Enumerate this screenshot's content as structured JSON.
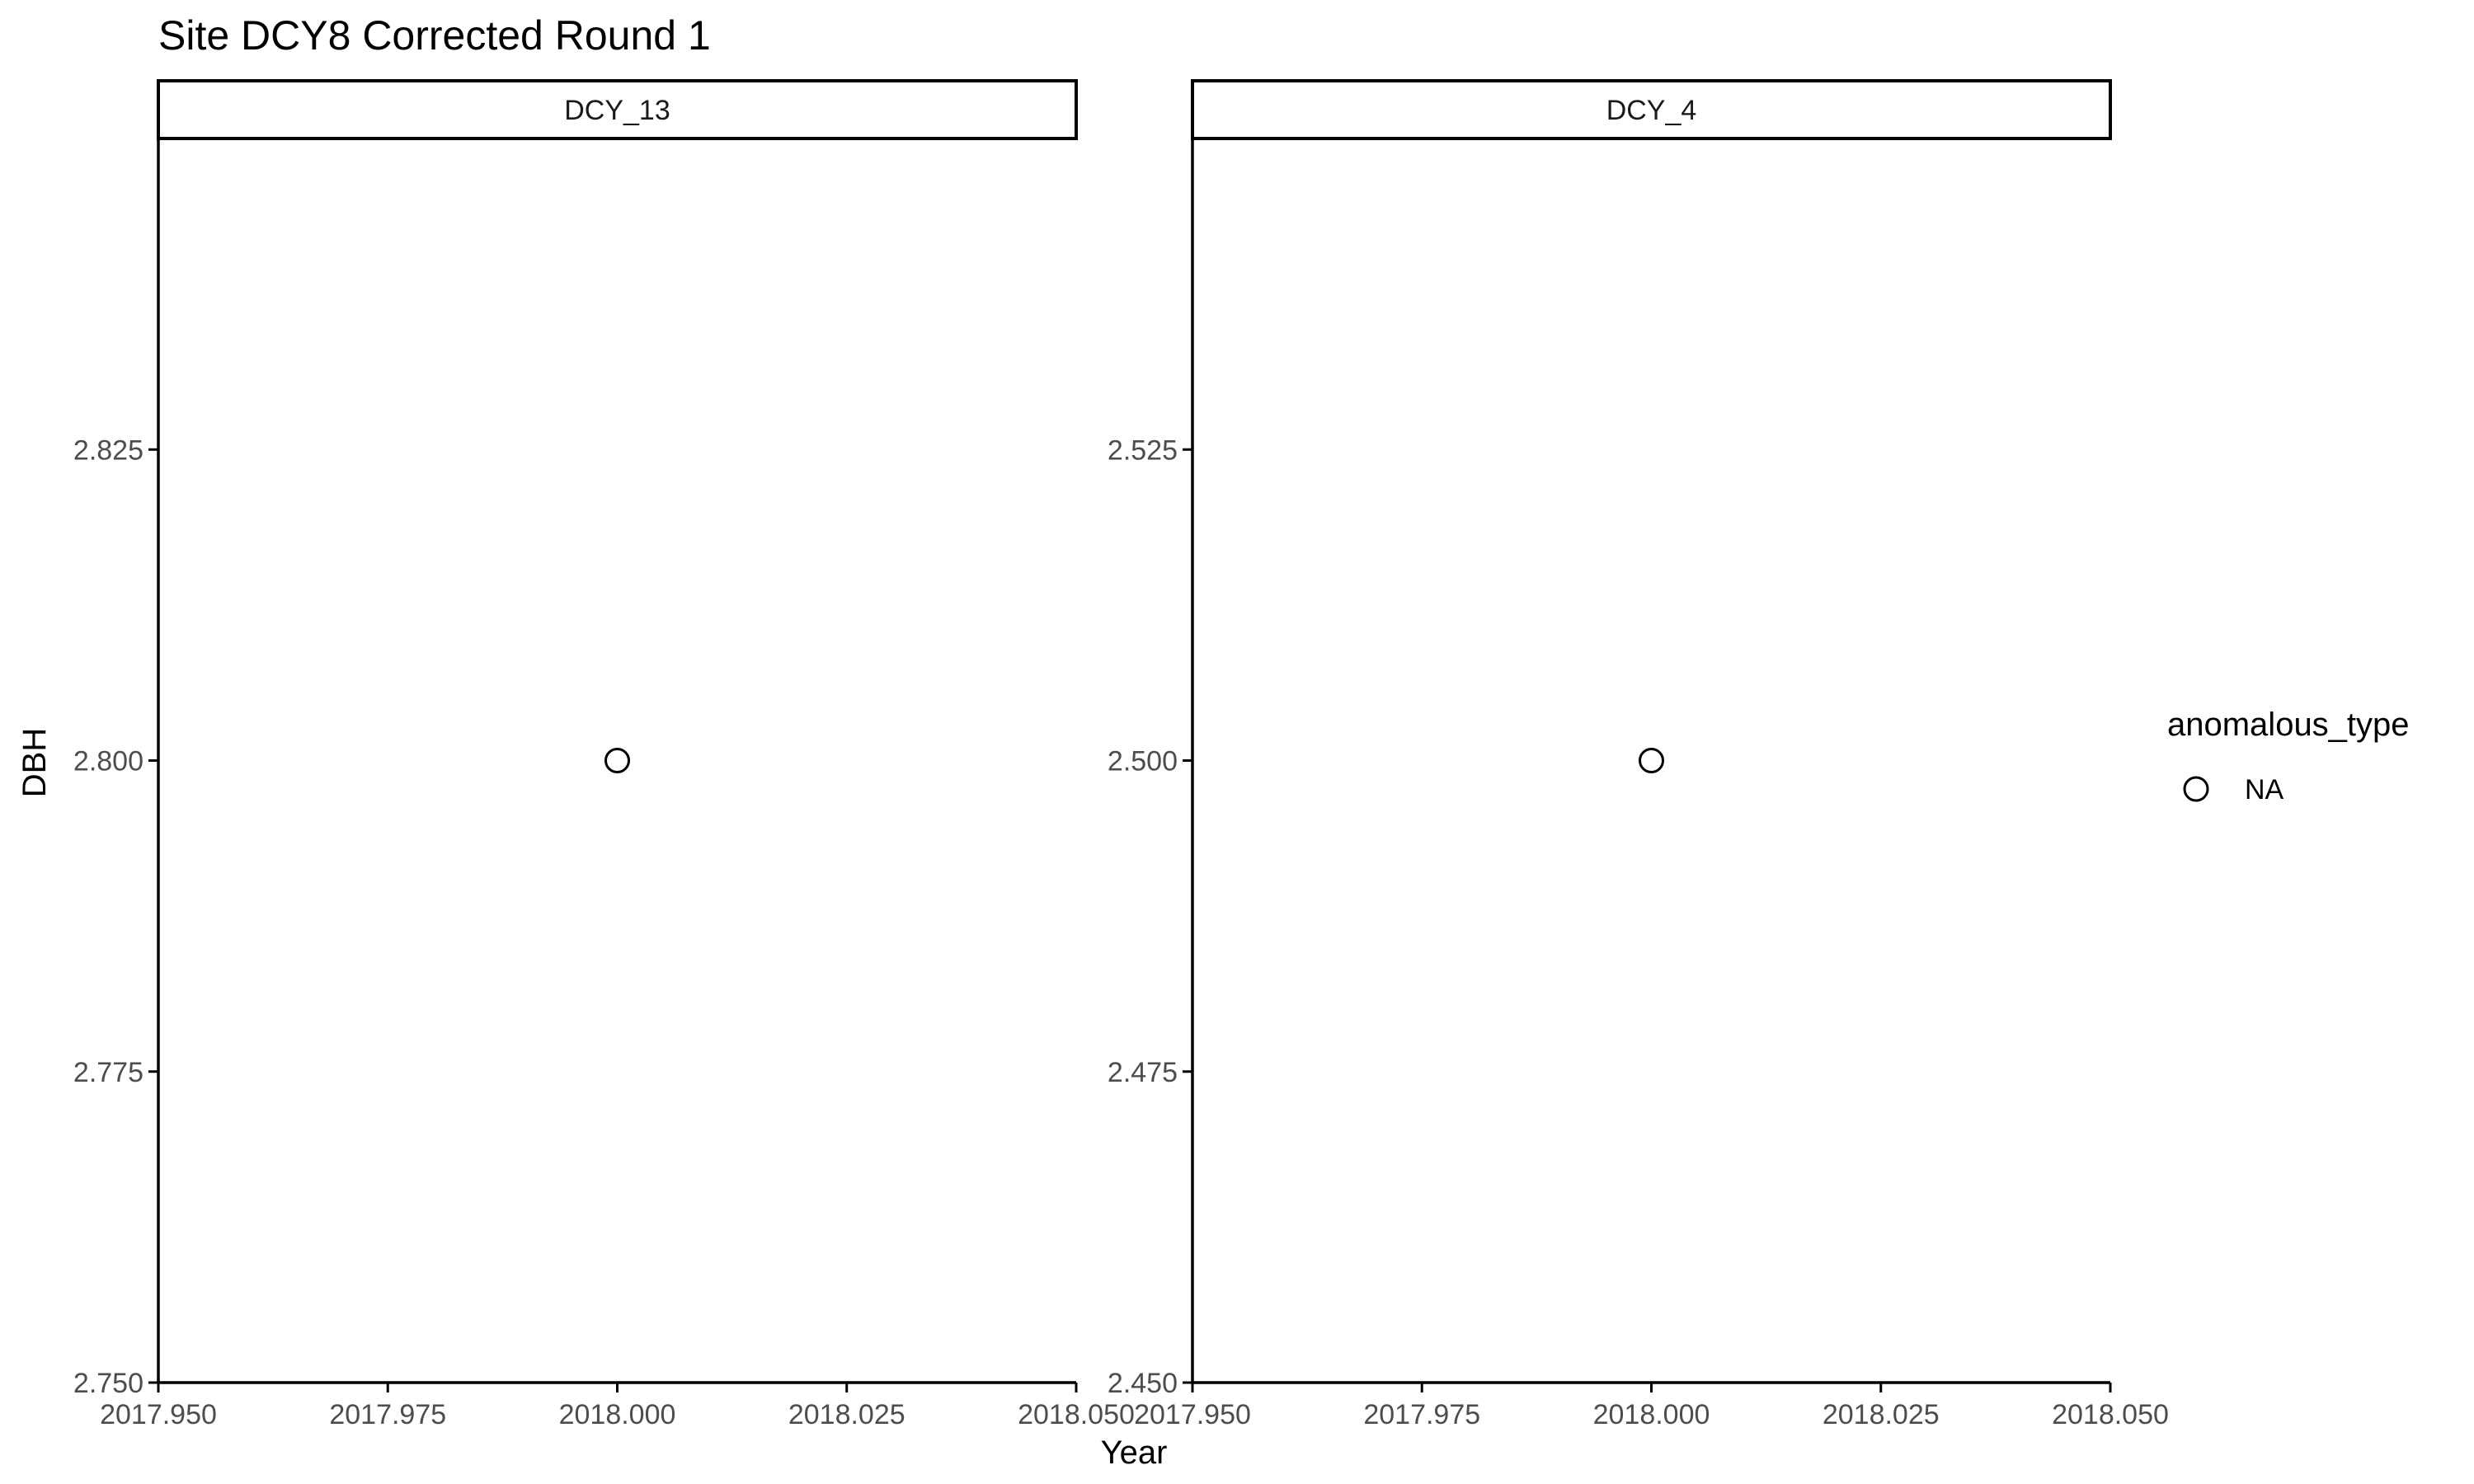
{
  "chart_data": {
    "type": "scatter",
    "title": "Site DCY8 Corrected Round 1",
    "xlabel": "Year",
    "ylabel": "DBH",
    "grid": false,
    "legend": {
      "title": "anomalous_type",
      "placement": "right",
      "entries": [
        {
          "label": "NA",
          "marker": "open-circle"
        }
      ]
    },
    "x_tick_labels": [
      "2017.950",
      "2017.975",
      "2018.000",
      "2018.025",
      "2018.050"
    ],
    "panels": [
      {
        "strip_label": "DCY_13",
        "xlim": [
          2017.95,
          2018.05
        ],
        "ylim": [
          2.75,
          2.85
        ],
        "x_ticks": [
          2017.95,
          2017.975,
          2018.0,
          2018.025,
          2018.05
        ],
        "y_ticks": [
          2.75,
          2.775,
          2.8,
          2.825
        ],
        "y_tick_labels": [
          "2.750",
          "2.775",
          "2.800",
          "2.825"
        ],
        "points": [
          {
            "x": 2018.0,
            "y": 2.8,
            "anomalous_type": "NA"
          }
        ]
      },
      {
        "strip_label": "DCY_4",
        "xlim": [
          2017.95,
          2018.05
        ],
        "ylim": [
          2.45,
          2.55
        ],
        "x_ticks": [
          2017.95,
          2017.975,
          2018.0,
          2018.025,
          2018.05
        ],
        "y_ticks": [
          2.45,
          2.475,
          2.5,
          2.525
        ],
        "y_tick_labels": [
          "2.450",
          "2.475",
          "2.500",
          "2.525"
        ],
        "points": [
          {
            "x": 2018.0,
            "y": 2.5,
            "anomalous_type": "NA"
          }
        ]
      }
    ],
    "colors": {
      "point_stroke": "#000000",
      "axis": "#000000",
      "tick_label": "#4d4d4d",
      "strip_fill": "#ffffff"
    }
  }
}
